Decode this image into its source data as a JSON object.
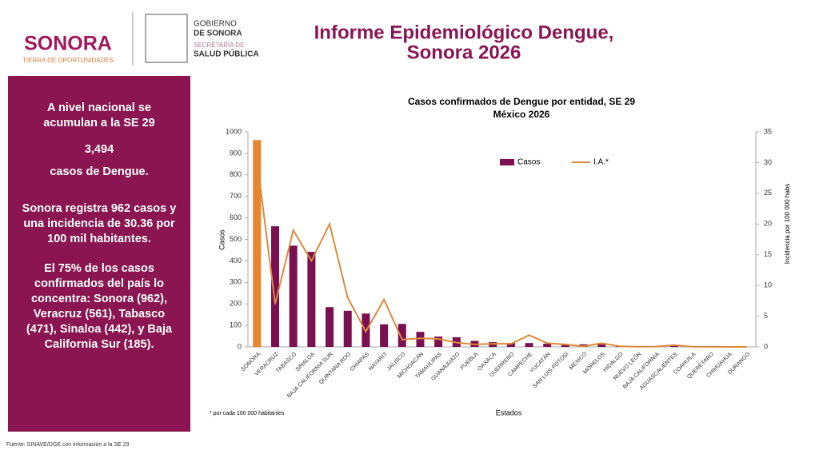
{
  "header": {
    "logo": "SONORA",
    "logo_tagline": "TIERRA DE OPORTUNIDADES",
    "gov_line1": "GOBIERNO",
    "gov_line2": "DE SONORA",
    "gov_line3": "SECRETARÍA DE",
    "gov_line4": "SALUD PÚBLICA",
    "title": [
      "Informe Epidemiológico Dengue,",
      "Sonora 2026"
    ]
  },
  "sidebar": {
    "intro": [
      "A nivel nacional se",
      "acumulan a la SE 29"
    ],
    "total": "3,494",
    "total_caption": "casos de Dengue.",
    "p2": [
      "Sonora registra 962 casos y",
      "una incidencia de 30.36 por",
      "100 mil habitantes."
    ],
    "p3": [
      "El 75% de los casos",
      "confirmados del país lo",
      "concentra: Sonora (962),",
      "Veracruz (561), Tabasco",
      "(471), Sinaloa (442), y Baja",
      "California Sur (185)."
    ]
  },
  "source": "Fuente: SINAVE/DGE con información a la SE 29",
  "chart_data": {
    "type": "bar-line",
    "title": [
      "Casos confirmados de Dengue por entidad, SE 29",
      "México 2026"
    ],
    "x_label": "Estados",
    "y_label": "Casos",
    "y2_label": "Incidencia por 100 000 habs",
    "footnote": "* por cada 100 000 habitantes",
    "categories": [
      "SONORA",
      "VERACRUZ",
      "TABASCO",
      "SINALOA",
      "BAJA CALIFORNIA SUR",
      "QUINTANA ROO",
      "CHIAPAS",
      "NAYARIT",
      "JALISCO",
      "MICHOACÁN",
      "TAMAULIPAS",
      "GUANAJUATO",
      "PUEBLA",
      "OAXACA",
      "GUERRERO",
      "CAMPECHE",
      "YUCATÁN",
      "SAN LUIS POTOSÍ",
      "MÉXICO",
      "MORELOS",
      "HIDALGO",
      "NUEVO LEÓN",
      "BAJA CALIFORNIA",
      "AGUASCALIENTES",
      "COAHUILA",
      "QUERÉTARO",
      "CHIHUAHUA",
      "DURANGO"
    ],
    "series": [
      {
        "name": "Casos",
        "type": "bar",
        "color": "#7b1050",
        "values": [
          962,
          561,
          471,
          442,
          185,
          168,
          155,
          105,
          107,
          70,
          48,
          45,
          28,
          22,
          18,
          18,
          15,
          10,
          12,
          12,
          3,
          2,
          2,
          5,
          1,
          1,
          0,
          0
        ]
      },
      {
        "name": "I.A.*",
        "type": "line",
        "axis": "y2",
        "color": "#dc8a3c",
        "values": [
          30.36,
          7,
          19,
          14,
          20,
          8,
          2.5,
          7.7,
          1.2,
          1.4,
          1.3,
          0.7,
          0.4,
          0.5,
          0.5,
          1.9,
          0.6,
          0.4,
          0.1,
          0.6,
          0.1,
          0.03,
          0.05,
          0.3,
          0.03,
          0.02,
          0,
          0
        ]
      }
    ],
    "bar_colors": [
      "#e8852f",
      "#7b1050",
      "#7b1050",
      "#7b1050",
      "#7b1050",
      "#7b1050",
      "#7b1050",
      "#7b1050",
      "#7b1050",
      "#7b1050",
      "#7b1050",
      "#7b1050",
      "#7b1050",
      "#7b1050",
      "#7b1050",
      "#7b1050",
      "#7b1050",
      "#7b1050",
      "#7b1050",
      "#7b1050",
      "#7b1050",
      "#7b1050",
      "#7b1050",
      "#7b1050",
      "#7b1050",
      "#7b1050",
      "#7b1050",
      "#7b1050"
    ],
    "ylim": [
      0,
      1000
    ],
    "yticks": [
      0,
      100,
      200,
      300,
      400,
      500,
      600,
      700,
      800,
      900,
      1000
    ],
    "y2lim": [
      0,
      35
    ],
    "y2ticks": [
      0,
      5,
      10,
      15,
      20,
      25,
      30,
      35
    ],
    "grid": false,
    "legend": "top"
  }
}
